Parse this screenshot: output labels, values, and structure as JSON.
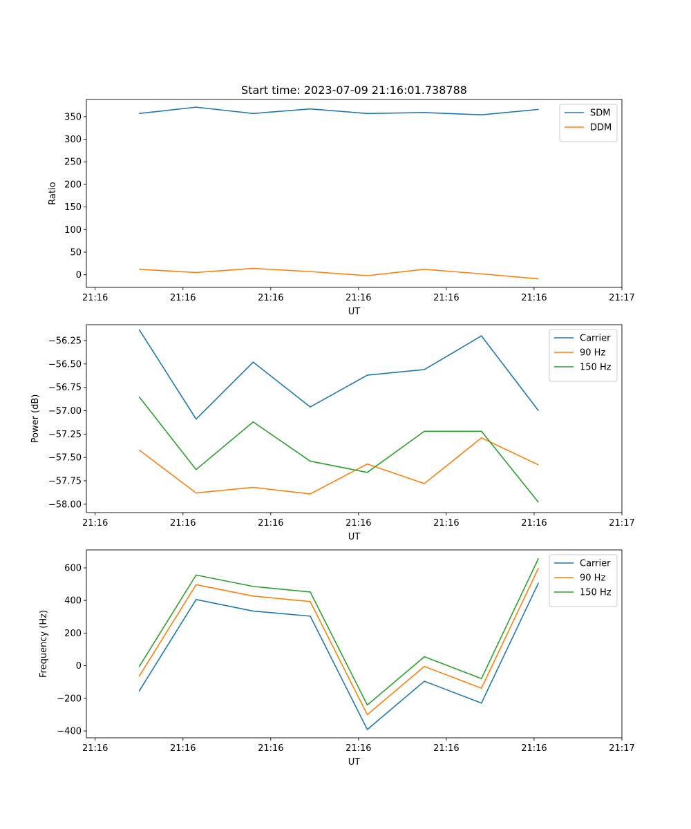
{
  "figure": {
    "title": "Start time: 2023-07-09 21:16:01.738788"
  },
  "chart_data": [
    {
      "type": "line",
      "title": "Start time: 2023-07-09 21:16:01.738788",
      "xlabel": "UT",
      "ylabel": "Ratio",
      "x": [
        0.5,
        1.15,
        1.8,
        2.45,
        3.1,
        3.75,
        4.4,
        5.05
      ],
      "xlim": [
        -0.1,
        6.0
      ],
      "xticks": [
        0,
        1,
        2,
        3,
        4,
        5,
        6
      ],
      "xtick_labels": [
        "21:16",
        "21:16",
        "21:16",
        "21:16",
        "21:16",
        "21:16",
        "21:17"
      ],
      "ylim": [
        -28,
        388
      ],
      "yticks": [
        0,
        50,
        100,
        150,
        200,
        250,
        300,
        350
      ],
      "ytick_labels": [
        "0",
        "50",
        "100",
        "150",
        "200",
        "250",
        "300",
        "350"
      ],
      "legend_position": "top-right",
      "grid": false,
      "series": [
        {
          "name": "SDM",
          "color": "#1f77b4",
          "values": [
            357,
            371,
            357,
            367,
            357,
            359,
            354,
            366
          ]
        },
        {
          "name": "DDM",
          "color": "#ff7f0e",
          "values": [
            12,
            5,
            14,
            7,
            -2,
            12,
            2,
            -9
          ]
        }
      ]
    },
    {
      "type": "line",
      "title": "",
      "xlabel": "UT",
      "ylabel": "Power (dB)",
      "x": [
        0.5,
        1.15,
        1.8,
        2.45,
        3.1,
        3.75,
        4.4,
        5.05
      ],
      "xlim": [
        -0.1,
        6.0
      ],
      "xticks": [
        0,
        1,
        2,
        3,
        4,
        5,
        6
      ],
      "xtick_labels": [
        "21:16",
        "21:16",
        "21:16",
        "21:16",
        "21:16",
        "21:16",
        "21:17"
      ],
      "ylim": [
        -58.09,
        -56.08
      ],
      "yticks": [
        -58.0,
        -57.75,
        -57.5,
        -57.25,
        -57.0,
        -56.75,
        -56.5,
        -56.25
      ],
      "ytick_labels": [
        "−58.00",
        "−57.75",
        "−57.50",
        "−57.25",
        "−57.00",
        "−56.75",
        "−56.50",
        "−56.25"
      ],
      "legend_position": "top-right",
      "grid": false,
      "series": [
        {
          "name": "Carrier",
          "color": "#1f77b4",
          "values": [
            -56.13,
            -57.09,
            -56.48,
            -56.96,
            -56.62,
            -56.56,
            -56.2,
            -57.0
          ]
        },
        {
          "name": "90 Hz",
          "color": "#ff7f0e",
          "values": [
            -57.42,
            -57.88,
            -57.82,
            -57.89,
            -57.57,
            -57.78,
            -57.29,
            -57.58
          ]
        },
        {
          "name": "150 Hz",
          "color": "#2ca02c",
          "values": [
            -56.85,
            -57.63,
            -57.12,
            -57.54,
            -57.66,
            -57.22,
            -57.22,
            -57.98
          ]
        }
      ]
    },
    {
      "type": "line",
      "title": "",
      "xlabel": "UT",
      "ylabel": "Frequency (Hz)",
      "x": [
        0.5,
        1.15,
        1.8,
        2.45,
        3.1,
        3.75,
        4.4,
        5.05
      ],
      "xlim": [
        -0.1,
        6.0
      ],
      "xticks": [
        0,
        1,
        2,
        3,
        4,
        5,
        6
      ],
      "xtick_labels": [
        "21:16",
        "21:16",
        "21:16",
        "21:16",
        "21:16",
        "21:16",
        "21:17"
      ],
      "ylim": [
        -442,
        710
      ],
      "yticks": [
        -400,
        -200,
        0,
        200,
        400,
        600
      ],
      "ytick_labels": [
        "−400",
        "−200",
        "0",
        "200",
        "400",
        "600"
      ],
      "legend_position": "top-right",
      "grid": false,
      "series": [
        {
          "name": "Carrier",
          "color": "#1f77b4",
          "values": [
            -157,
            406,
            335,
            304,
            -391,
            -95,
            -229,
            508
          ]
        },
        {
          "name": "90 Hz",
          "color": "#ff7f0e",
          "values": [
            -66,
            497,
            427,
            393,
            -300,
            -4,
            -138,
            599
          ]
        },
        {
          "name": "150 Hz",
          "color": "#2ca02c",
          "values": [
            -7,
            556,
            486,
            452,
            -241,
            55,
            -79,
            658
          ]
        }
      ]
    }
  ]
}
